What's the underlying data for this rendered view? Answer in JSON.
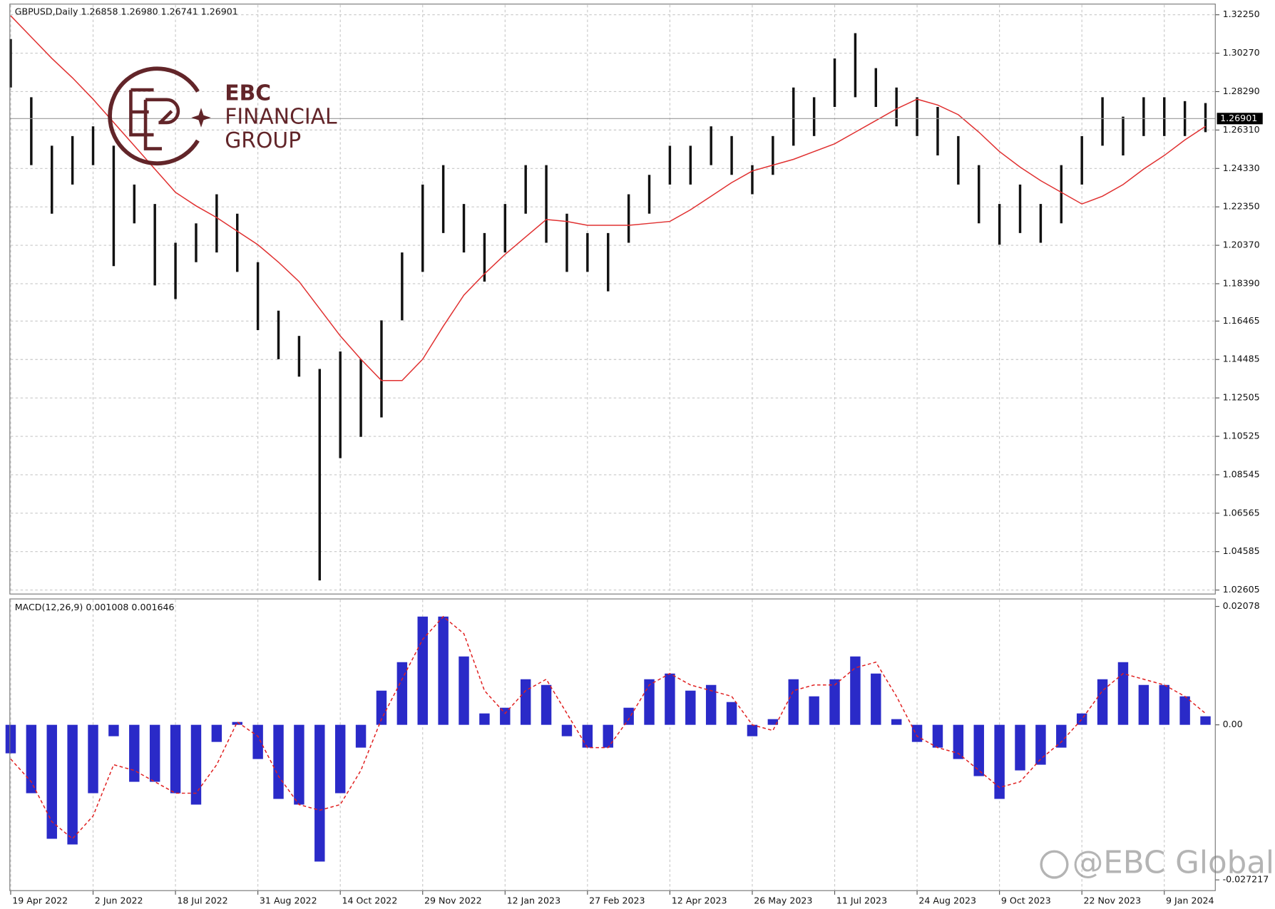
{
  "chart_data": [
    {
      "type": "ohlc",
      "title": "GBPUSD,Daily 1.26858 1.26980 1.26741 1.26901",
      "categories": [
        "19 Apr 2022",
        null,
        null,
        null,
        "2 Jun 2022",
        null,
        null,
        null,
        "18 Jul 2022",
        null,
        null,
        null,
        "31 Aug 2022",
        null,
        null,
        null,
        "14 Oct 2022",
        null,
        null,
        null,
        "29 Nov 2022",
        null,
        null,
        null,
        "12 Jan 2023",
        null,
        null,
        null,
        "27 Feb 2023",
        null,
        null,
        null,
        "12 Apr 2023",
        null,
        null,
        null,
        "26 May 2023",
        null,
        null,
        null,
        "11 Jul 2023",
        null,
        null,
        null,
        "24 Aug 2023",
        null,
        null,
        null,
        "9 Oct 2023",
        null,
        null,
        null,
        "22 Nov 2023",
        null,
        null,
        null,
        "9 Jan 2024",
        null,
        null
      ],
      "high": [
        1.31,
        1.28,
        1.255,
        1.26,
        1.265,
        1.255,
        1.235,
        1.225,
        1.205,
        1.215,
        1.23,
        1.22,
        1.195,
        1.17,
        1.157,
        1.14,
        1.149,
        1.145,
        1.165,
        1.2,
        1.235,
        1.245,
        1.225,
        1.21,
        1.225,
        1.245,
        1.245,
        1.22,
        1.21,
        1.21,
        1.23,
        1.24,
        1.255,
        1.255,
        1.265,
        1.26,
        1.245,
        1.26,
        1.285,
        1.28,
        1.3,
        1.313,
        1.295,
        1.285,
        1.28,
        1.275,
        1.26,
        1.245,
        1.225,
        1.235,
        1.225,
        1.245,
        1.26,
        1.28,
        1.27,
        1.28,
        1.28,
        1.278,
        1.277
      ],
      "low": [
        1.285,
        1.245,
        1.22,
        1.235,
        1.245,
        1.193,
        1.215,
        1.183,
        1.176,
        1.195,
        1.2,
        1.19,
        1.16,
        1.145,
        1.136,
        1.031,
        1.094,
        1.105,
        1.115,
        1.165,
        1.19,
        1.21,
        1.2,
        1.185,
        1.2,
        1.22,
        1.205,
        1.19,
        1.19,
        1.18,
        1.205,
        1.22,
        1.235,
        1.235,
        1.245,
        1.24,
        1.23,
        1.24,
        1.255,
        1.26,
        1.275,
        1.28,
        1.275,
        1.265,
        1.26,
        1.25,
        1.235,
        1.215,
        1.204,
        1.21,
        1.205,
        1.215,
        1.235,
        1.255,
        1.25,
        1.26,
        1.26,
        1.26,
        1.262
      ],
      "bar_color": "#111111",
      "ma": {
        "color": "#e03030",
        "values": [
          1.322,
          1.311,
          1.3,
          1.29,
          1.279,
          1.267,
          1.255,
          1.243,
          1.231,
          1.224,
          1.218,
          1.211,
          1.204,
          1.195,
          1.185,
          1.171,
          1.157,
          1.145,
          1.134,
          1.134,
          1.145,
          1.162,
          1.178,
          1.189,
          1.199,
          1.208,
          1.217,
          1.216,
          1.214,
          1.214,
          1.214,
          1.215,
          1.216,
          1.222,
          1.229,
          1.236,
          1.242,
          1.245,
          1.248,
          1.252,
          1.256,
          1.262,
          1.268,
          1.274,
          1.279,
          1.276,
          1.271,
          1.262,
          1.252,
          1.244,
          1.237,
          1.231,
          1.225,
          1.229,
          1.235,
          1.243,
          1.25,
          1.258,
          1.265
        ]
      },
      "last_price": {
        "value": 1.26901,
        "label": "1.26901"
      },
      "ylim": [
        1.024,
        1.328
      ],
      "yticks": [
        {
          "value": 1.02605,
          "label": "1.02605"
        },
        {
          "value": 1.04585,
          "label": "1.04585"
        },
        {
          "value": 1.06565,
          "label": "1.06565"
        },
        {
          "value": 1.08545,
          "label": "1.08545"
        },
        {
          "value": 1.10525,
          "label": "1.10525"
        },
        {
          "value": 1.12505,
          "label": "1.12505"
        },
        {
          "value": 1.14485,
          "label": "1.14485"
        },
        {
          "value": 1.16465,
          "label": "1.16465"
        },
        {
          "value": 1.1839,
          "label": "1.18390"
        },
        {
          "value": 1.2037,
          "label": "1.20370"
        },
        {
          "value": 1.2235,
          "label": "1.22350"
        },
        {
          "value": 1.2433,
          "label": "1.24330"
        },
        {
          "value": 1.2631,
          "label": "1.26310"
        },
        {
          "value": 1.2829,
          "label": "1.28290"
        },
        {
          "value": 1.3027,
          "label": "1.30270"
        },
        {
          "value": 1.3225,
          "label": "1.32250"
        }
      ],
      "grid": true
    },
    {
      "type": "macd",
      "title": "MACD(12,26,9) 0.001008 0.001646",
      "histogram": {
        "color": "#2a2ac8",
        "values": [
          -0.005,
          -0.012,
          -0.02,
          -0.021,
          -0.012,
          -0.002,
          -0.01,
          -0.01,
          -0.012,
          -0.014,
          -0.003,
          0.0005,
          -0.006,
          -0.013,
          -0.014,
          -0.024,
          -0.012,
          -0.004,
          0.006,
          0.011,
          0.019,
          0.019,
          0.012,
          0.002,
          0.003,
          0.008,
          0.007,
          -0.002,
          -0.004,
          -0.004,
          0.003,
          0.008,
          0.009,
          0.006,
          0.007,
          0.004,
          -0.002,
          0.001,
          0.008,
          0.005,
          0.008,
          0.012,
          0.009,
          0.001,
          -0.003,
          -0.004,
          -0.006,
          -0.009,
          -0.013,
          -0.008,
          -0.007,
          -0.004,
          0.002,
          0.008,
          0.011,
          0.007,
          0.007,
          0.005,
          0.0015
        ]
      },
      "signal": {
        "color": "#e02020",
        "values": [
          -0.006,
          -0.01,
          -0.017,
          -0.02,
          -0.016,
          -0.007,
          -0.008,
          -0.01,
          -0.012,
          -0.012,
          -0.007,
          0.0005,
          -0.002,
          -0.009,
          -0.014,
          -0.015,
          -0.014,
          -0.008,
          0.001,
          0.008,
          0.015,
          0.019,
          0.016,
          0.006,
          0.002,
          0.006,
          0.008,
          0.002,
          -0.004,
          -0.004,
          0.001,
          0.007,
          0.009,
          0.007,
          0.006,
          0.005,
          0.0,
          -0.001,
          0.006,
          0.007,
          0.007,
          0.01,
          0.011,
          0.005,
          -0.002,
          -0.004,
          -0.005,
          -0.008,
          -0.011,
          -0.01,
          -0.006,
          -0.003,
          0.001,
          0.006,
          0.009,
          0.008,
          0.007,
          0.005,
          0.002
        ]
      },
      "ylim": [
        -0.0291,
        0.0221
      ],
      "yticks": [
        -0.027217,
        {
          "value": 0,
          "label": "0.00"
        },
        0.02078
      ]
    }
  ],
  "logo": {
    "line1": "EBC",
    "line2": "FINANCIAL",
    "line3": "GROUP"
  },
  "watermark": "@EBC Global"
}
